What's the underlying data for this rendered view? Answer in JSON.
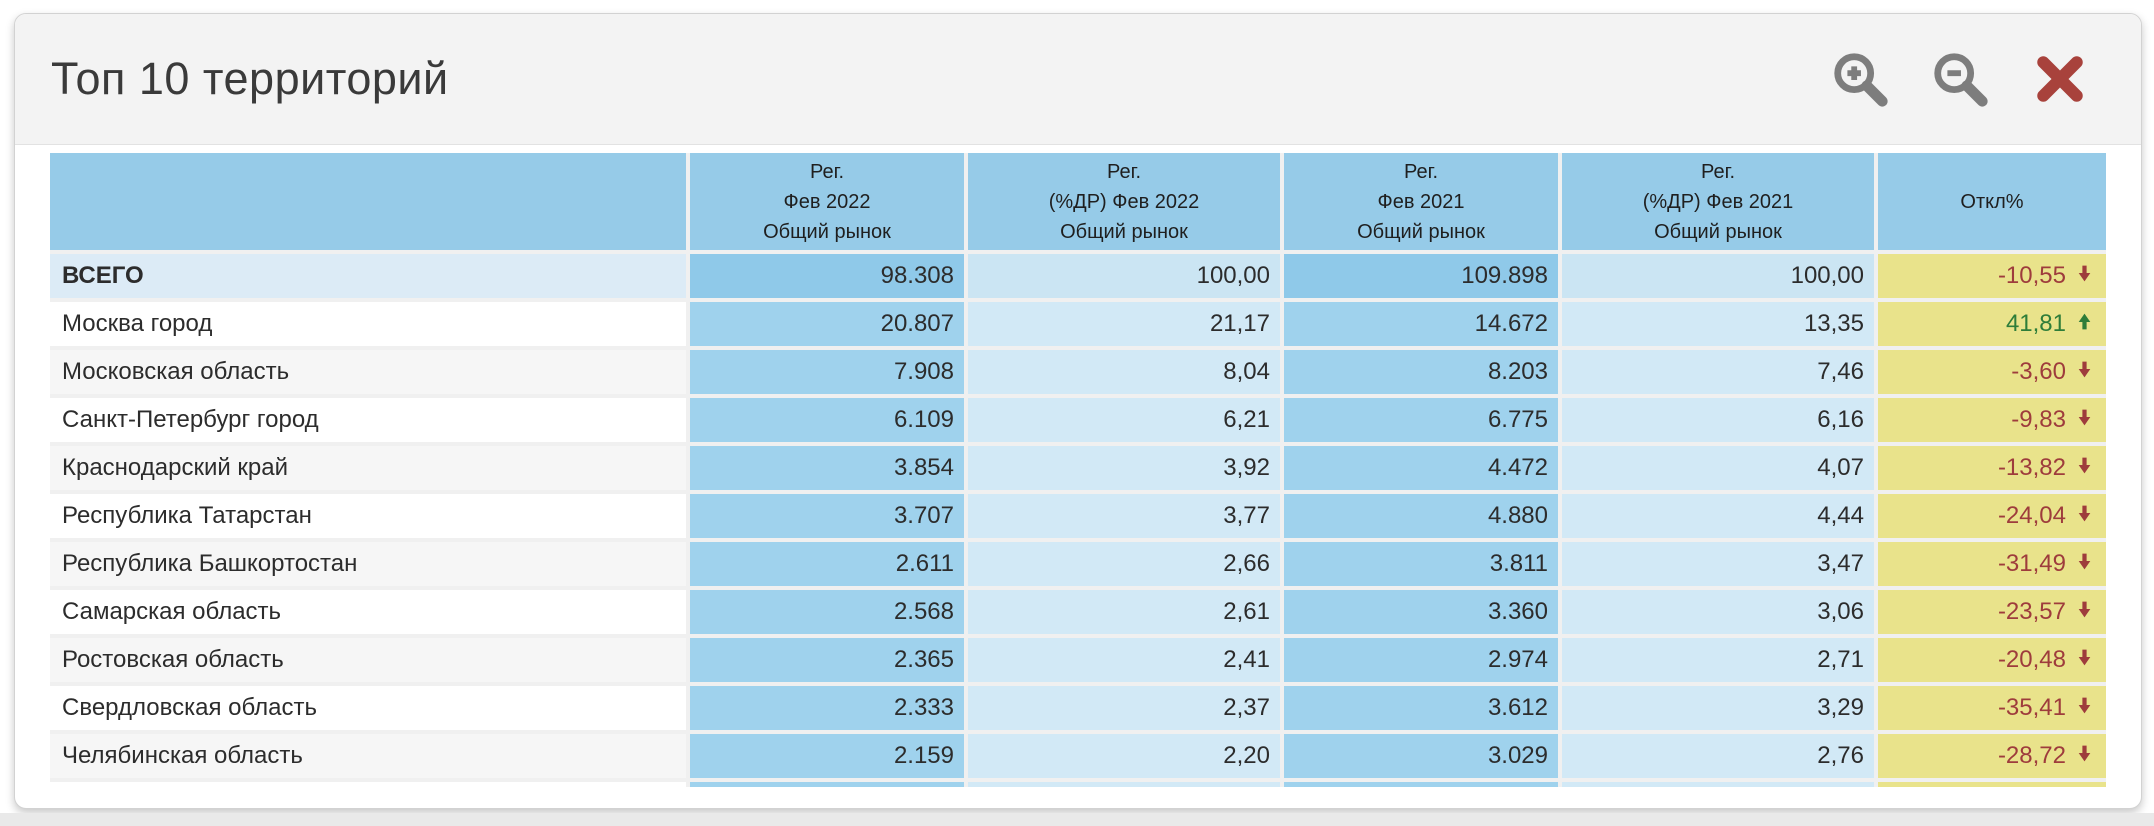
{
  "page": {
    "title": "Топ 10 территорий"
  },
  "toolbar": {
    "zoom_in_icon": "magnifier-plus",
    "zoom_out_icon": "magnifier-minus",
    "close_icon": "red-cross"
  },
  "colors": {
    "header_blue": "#96cbe8",
    "abs_cell_blue": "#9fd2ed",
    "share_cell_blue": "#d2e9f6",
    "total_row_label_blue": "#dcebf6",
    "deviation_yellow": "#e9e38b",
    "negative_red": "#9e3c3c",
    "positive_green": "#2e7d39",
    "icon_gray": "#7d7d7d",
    "close_red": "#a8423c"
  },
  "table": {
    "columns": [
      {
        "lines": []
      },
      {
        "lines": [
          "Рег.",
          "Фев 2022",
          "Общий рынок"
        ]
      },
      {
        "lines": [
          "Рег.",
          "(%ДР) Фев 2022",
          "Общий рынок"
        ]
      },
      {
        "lines": [
          "Рег.",
          "Фев 2021",
          "Общий рынок"
        ]
      },
      {
        "lines": [
          "Рег.",
          "(%ДР) Фев 2021",
          "Общий рынок"
        ]
      },
      {
        "lines": [
          "Откл%"
        ]
      }
    ],
    "rows": [
      {
        "name": "ВСЕГО",
        "total": true,
        "reg_feb2022": "98.308",
        "share_feb2022": "100,00",
        "reg_feb2021": "109.898",
        "share_feb2021": "100,00",
        "deviation": "-10,55",
        "trend": "down"
      },
      {
        "name": "Москва город",
        "reg_feb2022": "20.807",
        "share_feb2022": "21,17",
        "reg_feb2021": "14.672",
        "share_feb2021": "13,35",
        "deviation": "41,81",
        "trend": "up"
      },
      {
        "name": "Московская область",
        "reg_feb2022": "7.908",
        "share_feb2022": "8,04",
        "reg_feb2021": "8.203",
        "share_feb2021": "7,46",
        "deviation": "-3,60",
        "trend": "down"
      },
      {
        "name": "Санкт-Петербург город",
        "reg_feb2022": "6.109",
        "share_feb2022": "6,21",
        "reg_feb2021": "6.775",
        "share_feb2021": "6,16",
        "deviation": "-9,83",
        "trend": "down"
      },
      {
        "name": "Краснодарский край",
        "reg_feb2022": "3.854",
        "share_feb2022": "3,92",
        "reg_feb2021": "4.472",
        "share_feb2021": "4,07",
        "deviation": "-13,82",
        "trend": "down"
      },
      {
        "name": "Республика Татарстан",
        "reg_feb2022": "3.707",
        "share_feb2022": "3,77",
        "reg_feb2021": "4.880",
        "share_feb2021": "4,44",
        "deviation": "-24,04",
        "trend": "down"
      },
      {
        "name": "Республика Башкортостан",
        "reg_feb2022": "2.611",
        "share_feb2022": "2,66",
        "reg_feb2021": "3.811",
        "share_feb2021": "3,47",
        "deviation": "-31,49",
        "trend": "down"
      },
      {
        "name": "Самарская область",
        "reg_feb2022": "2.568",
        "share_feb2022": "2,61",
        "reg_feb2021": "3.360",
        "share_feb2021": "3,06",
        "deviation": "-23,57",
        "trend": "down"
      },
      {
        "name": "Ростовская область",
        "reg_feb2022": "2.365",
        "share_feb2022": "2,41",
        "reg_feb2021": "2.974",
        "share_feb2021": "2,71",
        "deviation": "-20,48",
        "trend": "down"
      },
      {
        "name": "Свердловская область",
        "reg_feb2022": "2.333",
        "share_feb2022": "2,37",
        "reg_feb2021": "3.612",
        "share_feb2021": "3,29",
        "deviation": "-35,41",
        "trend": "down"
      },
      {
        "name": "Челябинская область",
        "reg_feb2022": "2.159",
        "share_feb2022": "2,20",
        "reg_feb2021": "3.029",
        "share_feb2021": "2,76",
        "deviation": "-28,72",
        "trend": "down"
      }
    ]
  }
}
